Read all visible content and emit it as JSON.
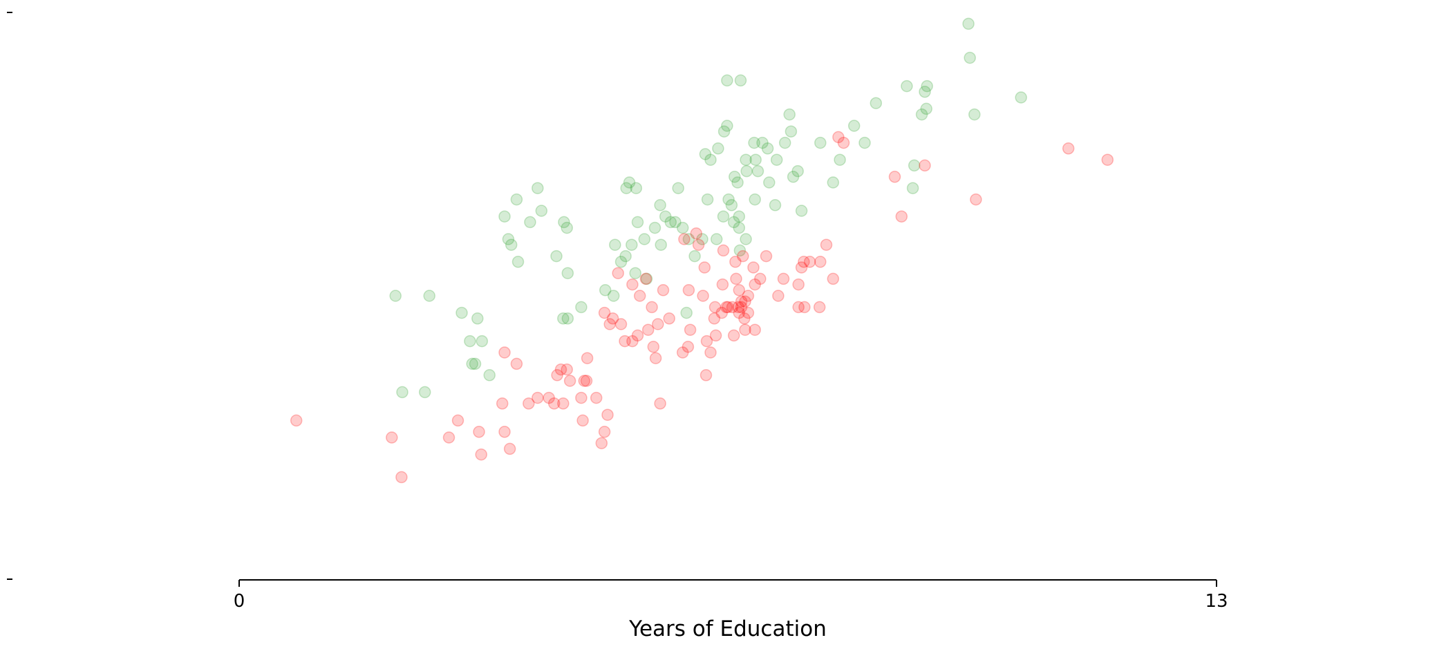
{
  "chart_data": {
    "type": "scatter",
    "title": "",
    "xlabel": "Years of Education",
    "ylabel": "",
    "xlim": [
      0,
      13
    ],
    "x_ticks": [
      "0",
      "13"
    ],
    "grid": false,
    "legend": "none",
    "series": [
      {
        "color": "#2ca02c",
        "opacity": 0.2,
        "points": [
          [
            2.08,
            0.5
          ],
          [
            2.53,
            0.5
          ],
          [
            2.17,
            0.33
          ],
          [
            2.47,
            0.33
          ],
          [
            2.96,
            0.47
          ],
          [
            3.17,
            0.46
          ],
          [
            3.07,
            0.42
          ],
          [
            3.23,
            0.42
          ],
          [
            3.1,
            0.38
          ],
          [
            3.14,
            0.38
          ],
          [
            3.33,
            0.36
          ],
          [
            3.53,
            0.64
          ],
          [
            3.58,
            0.6
          ],
          [
            3.62,
            0.59
          ],
          [
            3.71,
            0.56
          ],
          [
            3.69,
            0.67
          ],
          [
            3.87,
            0.63
          ],
          [
            3.97,
            0.69
          ],
          [
            4.02,
            0.65
          ],
          [
            4.22,
            0.57
          ],
          [
            4.32,
            0.63
          ],
          [
            4.36,
            0.62
          ],
          [
            4.37,
            0.54
          ],
          [
            4.31,
            0.46
          ],
          [
            4.37,
            0.46
          ],
          [
            4.55,
            0.48
          ],
          [
            4.87,
            0.51
          ],
          [
            4.98,
            0.5
          ],
          [
            5.0,
            0.59
          ],
          [
            5.08,
            0.56
          ],
          [
            5.14,
            0.57
          ],
          [
            5.15,
            0.69
          ],
          [
            5.19,
            0.7
          ],
          [
            5.28,
            0.69
          ],
          [
            5.22,
            0.59
          ],
          [
            5.27,
            0.54
          ],
          [
            5.3,
            0.63
          ],
          [
            5.39,
            0.6
          ],
          [
            5.42,
            0.53
          ],
          [
            5.53,
            0.62
          ],
          [
            5.6,
            0.66
          ],
          [
            5.74,
            0.63
          ],
          [
            5.61,
            0.59
          ],
          [
            5.67,
            0.64
          ],
          [
            5.8,
            0.63
          ],
          [
            5.84,
            0.69
          ],
          [
            5.9,
            0.62
          ],
          [
            5.98,
            0.6
          ],
          [
            5.95,
            0.47
          ],
          [
            6.06,
            0.57
          ],
          [
            6.16,
            0.6
          ],
          [
            6.2,
            0.75
          ],
          [
            6.27,
            0.74
          ],
          [
            6.37,
            0.76
          ],
          [
            6.45,
            0.79
          ],
          [
            6.49,
            0.8
          ],
          [
            6.23,
            0.67
          ],
          [
            6.35,
            0.6
          ],
          [
            6.44,
            0.64
          ],
          [
            6.51,
            0.67
          ],
          [
            6.49,
            0.88
          ],
          [
            6.67,
            0.88
          ],
          [
            6.59,
            0.71
          ],
          [
            6.63,
            0.7
          ],
          [
            6.55,
            0.66
          ],
          [
            6.65,
            0.64
          ],
          [
            6.58,
            0.63
          ],
          [
            6.65,
            0.62
          ],
          [
            6.74,
            0.6
          ],
          [
            6.66,
            0.58
          ],
          [
            6.75,
            0.72
          ],
          [
            6.74,
            0.74
          ],
          [
            6.87,
            0.74
          ],
          [
            6.85,
            0.77
          ],
          [
            6.96,
            0.77
          ],
          [
            7.03,
            0.76
          ],
          [
            6.9,
            0.72
          ],
          [
            6.86,
            0.67
          ],
          [
            7.05,
            0.7
          ],
          [
            7.15,
            0.74
          ],
          [
            7.26,
            0.77
          ],
          [
            7.34,
            0.79
          ],
          [
            7.13,
            0.66
          ],
          [
            7.32,
            0.82
          ],
          [
            7.37,
            0.71
          ],
          [
            7.43,
            0.72
          ],
          [
            7.48,
            0.65
          ],
          [
            7.73,
            0.77
          ],
          [
            7.9,
            0.7
          ],
          [
            7.99,
            0.74
          ],
          [
            8.18,
            0.8
          ],
          [
            8.32,
            0.77
          ],
          [
            8.47,
            0.84
          ],
          [
            8.88,
            0.87
          ],
          [
            8.96,
            0.69
          ],
          [
            8.98,
            0.73
          ],
          [
            9.08,
            0.82
          ],
          [
            9.14,
            0.83
          ],
          [
            9.15,
            0.87
          ],
          [
            9.12,
            0.86
          ],
          [
            9.7,
            0.98
          ],
          [
            9.72,
            0.92
          ],
          [
            9.78,
            0.82
          ],
          [
            10.4,
            0.85
          ]
        ]
      },
      {
        "color": "#ff0000",
        "opacity": 0.2,
        "points": [
          [
            0.76,
            0.28
          ],
          [
            2.03,
            0.25
          ],
          [
            2.16,
            0.18
          ],
          [
            2.91,
            0.28
          ],
          [
            2.79,
            0.25
          ],
          [
            3.19,
            0.26
          ],
          [
            3.22,
            0.22
          ],
          [
            3.53,
            0.26
          ],
          [
            3.5,
            0.31
          ],
          [
            3.6,
            0.23
          ],
          [
            3.85,
            0.31
          ],
          [
            3.53,
            0.4
          ],
          [
            3.69,
            0.38
          ],
          [
            3.97,
            0.32
          ],
          [
            4.12,
            0.32
          ],
          [
            4.19,
            0.31
          ],
          [
            4.23,
            0.36
          ],
          [
            4.28,
            0.37
          ],
          [
            4.36,
            0.37
          ],
          [
            4.31,
            0.31
          ],
          [
            4.4,
            0.35
          ],
          [
            4.55,
            0.32
          ],
          [
            4.57,
            0.28
          ],
          [
            4.63,
            0.39
          ],
          [
            4.59,
            0.35
          ],
          [
            4.62,
            0.35
          ],
          [
            4.75,
            0.32
          ],
          [
            4.86,
            0.26
          ],
          [
            4.82,
            0.24
          ],
          [
            4.9,
            0.29
          ],
          [
            4.86,
            0.47
          ],
          [
            4.97,
            0.46
          ],
          [
            4.93,
            0.45
          ],
          [
            5.04,
            0.54
          ],
          [
            5.08,
            0.45
          ],
          [
            5.13,
            0.42
          ],
          [
            5.23,
            0.42
          ],
          [
            5.23,
            0.52
          ],
          [
            5.3,
            0.43
          ],
          [
            5.33,
            0.5
          ],
          [
            5.44,
            0.44
          ],
          [
            5.41,
            0.53
          ],
          [
            5.51,
            0.41
          ],
          [
            5.49,
            0.48
          ],
          [
            5.57,
            0.45
          ],
          [
            5.54,
            0.39
          ],
          [
            5.64,
            0.51
          ],
          [
            5.6,
            0.31
          ],
          [
            5.72,
            0.46
          ],
          [
            5.9,
            0.4
          ],
          [
            5.97,
            0.41
          ],
          [
            5.98,
            0.51
          ],
          [
            5.92,
            0.6
          ],
          [
            6.0,
            0.44
          ],
          [
            6.11,
            0.59
          ],
          [
            6.08,
            0.61
          ],
          [
            6.19,
            0.55
          ],
          [
            6.17,
            0.5
          ],
          [
            6.22,
            0.42
          ],
          [
            6.21,
            0.36
          ],
          [
            6.27,
            0.4
          ],
          [
            6.32,
            0.46
          ],
          [
            6.33,
            0.48
          ],
          [
            6.34,
            0.43
          ],
          [
            6.43,
            0.52
          ],
          [
            6.42,
            0.47
          ],
          [
            6.44,
            0.58
          ],
          [
            6.48,
            0.48
          ],
          [
            6.5,
            0.48
          ],
          [
            6.56,
            0.48
          ],
          [
            6.6,
            0.56
          ],
          [
            6.61,
            0.53
          ],
          [
            6.58,
            0.43
          ],
          [
            6.65,
            0.47
          ],
          [
            6.68,
            0.49
          ],
          [
            6.73,
            0.49
          ],
          [
            6.77,
            0.5
          ],
          [
            6.86,
            0.52
          ],
          [
            6.86,
            0.44
          ],
          [
            6.68,
            0.48
          ],
          [
            6.65,
            0.51
          ],
          [
            6.72,
            0.46
          ],
          [
            6.73,
            0.44
          ],
          [
            6.64,
            0.48
          ],
          [
            6.7,
            0.57
          ],
          [
            6.77,
            0.47
          ],
          [
            6.84,
            0.55
          ],
          [
            6.93,
            0.53
          ],
          [
            7.01,
            0.57
          ],
          [
            7.17,
            0.5
          ],
          [
            7.24,
            0.53
          ],
          [
            7.44,
            0.52
          ],
          [
            7.48,
            0.55
          ],
          [
            7.44,
            0.48
          ],
          [
            7.51,
            0.56
          ],
          [
            7.52,
            0.48
          ],
          [
            7.59,
            0.56
          ],
          [
            7.73,
            0.56
          ],
          [
            7.72,
            0.48
          ],
          [
            7.81,
            0.59
          ],
          [
            7.9,
            0.53
          ],
          [
            7.97,
            0.78
          ],
          [
            8.04,
            0.77
          ],
          [
            8.72,
            0.71
          ],
          [
            8.81,
            0.64
          ],
          [
            9.12,
            0.73
          ],
          [
            9.8,
            0.67
          ],
          [
            11.03,
            0.76
          ],
          [
            11.55,
            0.74
          ]
        ]
      }
    ]
  }
}
